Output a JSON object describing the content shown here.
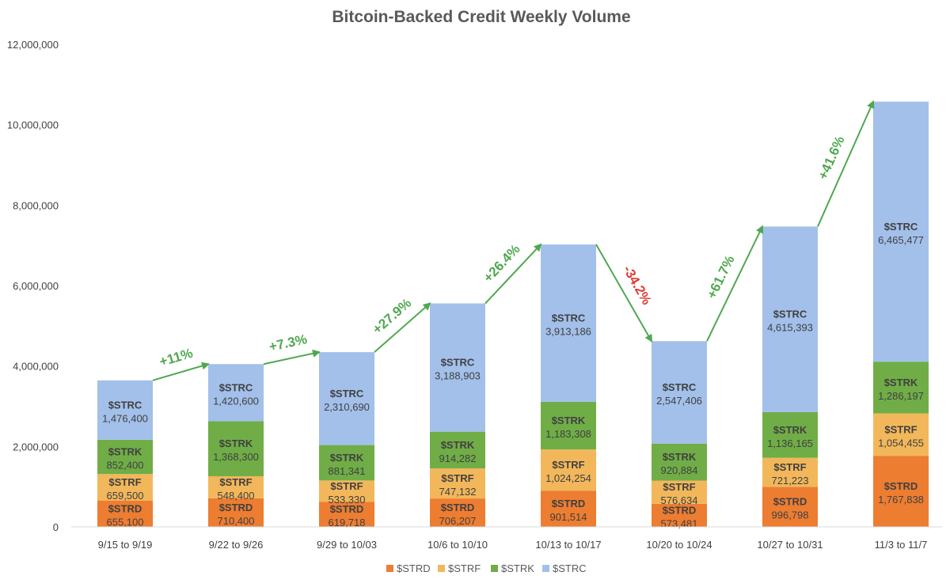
{
  "chart_data": {
    "type": "bar",
    "stacked": true,
    "title": "Bitcoin-Backed Credit Weekly Volume",
    "xlabel": "",
    "ylabel": "",
    "ylim": [
      0,
      12000000
    ],
    "yticks": [
      0,
      2000000,
      4000000,
      6000000,
      8000000,
      10000000,
      12000000
    ],
    "ytick_labels": [
      "0",
      "2,000,000",
      "4,000,000",
      "6,000,000",
      "8,000,000",
      "10,000,000",
      "12,000,000"
    ],
    "grid": false,
    "legend_position": "bottom",
    "categories": [
      "9/15 to 9/19",
      "9/22 to 9/26",
      "9/29 to 10/03",
      "10/6 to 10/10",
      "10/13 to 10/17",
      "10/20 to 10/24",
      "10/27 to 10/31",
      "11/3 to 11/7"
    ],
    "series": [
      {
        "name": "$STRD",
        "color": "#ED7D31",
        "values": [
          655100,
          710400,
          619718,
          706207,
          901514,
          573481,
          996798,
          1767838
        ],
        "labels": [
          "655,100",
          "710,400",
          "619,718",
          "706,207",
          "901,514",
          "573,481",
          "996,798",
          "1,767,838"
        ]
      },
      {
        "name": "$STRF",
        "color": "#F2B75B",
        "values": [
          659500,
          548400,
          533330,
          747132,
          1024254,
          576634,
          721223,
          1054455
        ],
        "labels": [
          "659,500",
          "548,400",
          "533,330",
          "747,132",
          "1,024,254",
          "576,634",
          "721,223",
          "1,054,455"
        ]
      },
      {
        "name": "$STRK",
        "color": "#70AD47",
        "values": [
          852400,
          1368300,
          881341,
          914282,
          1183308,
          920884,
          1136165,
          1286197
        ],
        "labels": [
          "852,400",
          "1,368,300",
          "881,341",
          "914,282",
          "1,183,308",
          "920,884",
          "1,136,165",
          "1,286,197"
        ]
      },
      {
        "name": "$STRC",
        "color": "#A3C0EA",
        "values": [
          1476400,
          1420600,
          2310690,
          3188903,
          3913186,
          2547406,
          4615393,
          6465477
        ],
        "labels": [
          "1,476,400",
          "1,420,600",
          "2,310,690",
          "3,188,903",
          "3,913,186",
          "2,547,406",
          "4,615,393",
          "6,465,477"
        ]
      }
    ],
    "changes": [
      {
        "text": "+11%",
        "color": "#4FA84F"
      },
      {
        "text": "+7.3%",
        "color": "#4FA84F"
      },
      {
        "text": "+27.9%",
        "color": "#4FA84F"
      },
      {
        "text": "+26.4%",
        "color": "#4FA84F"
      },
      {
        "text": "-34.2%",
        "color": "#E03C31"
      },
      {
        "text": "+61.7%",
        "color": "#4FA84F"
      },
      {
        "text": "+41.6%",
        "color": "#4FA84F"
      }
    ],
    "arrow_color": "#4FA84F"
  }
}
